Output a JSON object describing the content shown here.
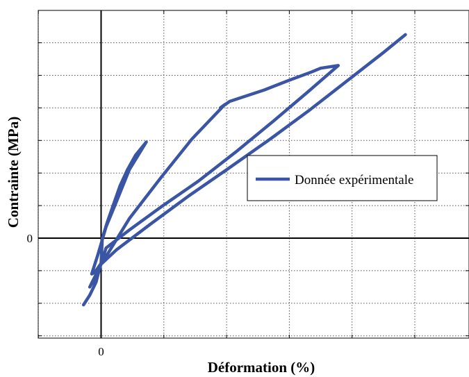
{
  "chart_data": {
    "type": "line",
    "title": "",
    "xlabel": "Déformation (%)",
    "ylabel": "Contrainte (MPa)",
    "xlim": [
      -1,
      5.8
    ],
    "ylim": [
      -3,
      7
    ],
    "x_grid_step": 1,
    "y_grid_step": 1,
    "grid": true,
    "grid_style": "dotted",
    "x_tick_labels": [
      {
        "value": 0,
        "label": "0"
      }
    ],
    "y_tick_labels": [
      {
        "value": 0,
        "label": "0"
      }
    ],
    "legend": {
      "position": "right",
      "entries": [
        "Donnée expérimentale"
      ]
    },
    "colors": {
      "series": "#3a55a4",
      "axes": "#000000",
      "grid": "#555555"
    },
    "series": [
      {
        "name": "Donnée expérimentale",
        "points": [
          [
            -0.28,
            -2.05
          ],
          [
            -0.18,
            -1.75
          ],
          [
            -0.08,
            -1.35
          ],
          [
            0.0,
            -0.75
          ],
          [
            0.02,
            0.0
          ],
          [
            0.1,
            0.5
          ],
          [
            0.2,
            1.05
          ],
          [
            0.3,
            1.6
          ],
          [
            0.42,
            2.1
          ],
          [
            0.55,
            2.55
          ],
          [
            0.72,
            2.95
          ],
          [
            0.45,
            2.1
          ],
          [
            0.25,
            1.15
          ],
          [
            0.08,
            0.35
          ],
          [
            -0.05,
            -0.5
          ],
          [
            -0.15,
            -1.1
          ],
          [
            -0.1,
            -1.05
          ],
          [
            0.1,
            -0.5
          ],
          [
            0.45,
            0.6
          ],
          [
            0.95,
            1.85
          ],
          [
            1.45,
            3.05
          ],
          [
            1.97,
            4.1
          ],
          [
            1.9,
            4.0
          ],
          [
            2.05,
            4.2
          ],
          [
            2.6,
            4.55
          ],
          [
            3.0,
            4.85
          ],
          [
            3.35,
            5.1
          ],
          [
            3.5,
            5.22
          ],
          [
            3.78,
            5.3
          ],
          [
            3.3,
            4.5
          ],
          [
            2.75,
            3.6
          ],
          [
            2.15,
            2.65
          ],
          [
            1.55,
            1.75
          ],
          [
            0.95,
            0.95
          ],
          [
            0.45,
            0.25
          ],
          [
            0.08,
            -0.3
          ],
          [
            -0.05,
            -1.1
          ],
          [
            -0.18,
            -1.5
          ],
          [
            0.0,
            -0.8
          ],
          [
            0.25,
            -0.35
          ],
          [
            0.8,
            0.45
          ],
          [
            1.4,
            1.3
          ],
          [
            2.0,
            2.1
          ],
          [
            2.7,
            3.05
          ],
          [
            3.3,
            3.9
          ],
          [
            3.9,
            4.8
          ],
          [
            4.5,
            5.7
          ],
          [
            4.85,
            6.25
          ]
        ]
      }
    ]
  }
}
